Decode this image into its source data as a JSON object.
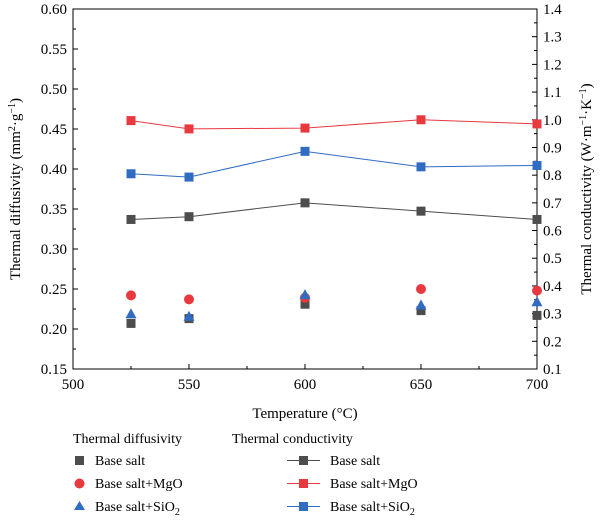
{
  "chart_data": {
    "type": "scatter+line",
    "x_axis": {
      "label": "Temperature (°C)",
      "range": [
        500,
        700
      ],
      "ticks": [
        "500",
        "550",
        "600",
        "650",
        "700"
      ]
    },
    "y_left": {
      "label_main": "Thermal diffusivity (mm",
      "label_sup1": "2",
      "label_mid": "g",
      "label_sup2": "−1",
      "label_end": ")",
      "range": [
        0.15,
        0.6
      ],
      "ticks": [
        "0.15",
        "0.20",
        "0.25",
        "0.30",
        "0.35",
        "0.40",
        "0.45",
        "0.50",
        "0.55",
        "0.60"
      ]
    },
    "y_right": {
      "label_main": "Thermal conductivity (W·m",
      "label_sup1": "−1",
      "label_mid": "·K",
      "label_sup2": "−1",
      "label_end": ")",
      "range": [
        0.1,
        1.4
      ],
      "ticks": [
        "0.1",
        "0.2",
        "0.3",
        "0.4",
        "0.5",
        "0.6",
        "0.7",
        "0.8",
        "0.9",
        "1.0",
        "1.1",
        "1.2",
        "1.3",
        "1.4"
      ]
    },
    "x": [
      525,
      550,
      600,
      650,
      700
    ],
    "diffusivity_series": [
      {
        "name": "Base salt",
        "marker": "square",
        "color": "#4d4d4d",
        "values": [
          0.207,
          0.213,
          0.231,
          0.223,
          0.217
        ]
      },
      {
        "name": "Base salt+MgO",
        "marker": "circle",
        "color": "#e8393f",
        "values": [
          0.242,
          0.237,
          0.239,
          0.25,
          0.248
        ]
      },
      {
        "name": "Base salt+SiO₂",
        "marker": "triangle",
        "color": "#2f6cc2",
        "values": [
          0.219,
          0.216,
          0.243,
          0.23,
          0.234
        ]
      }
    ],
    "conductivity_series": [
      {
        "name": "Base salt",
        "marker": "square",
        "color": "#4d4d4d",
        "values": [
          0.64,
          0.65,
          0.7,
          0.67,
          0.64
        ]
      },
      {
        "name": "Base salt+MgO",
        "marker": "square",
        "color": "#e8393f",
        "values": [
          0.997,
          0.967,
          0.97,
          1.0,
          0.985
        ]
      },
      {
        "name": "Base salt+SiO₂",
        "marker": "square",
        "color": "#2f6cc2",
        "values": [
          0.805,
          0.793,
          0.886,
          0.83,
          0.835
        ]
      }
    ],
    "legend": {
      "diffusivity_heading": "Thermal diffusivity",
      "conductivity_heading": "Thermal conductivity",
      "items": {
        "base": "Base salt",
        "mgo": "Base salt+MgO",
        "sio2_prefix": "Base salt+SiO",
        "sio2_sub": "2"
      },
      "placement": "bottom"
    },
    "grid": false
  }
}
